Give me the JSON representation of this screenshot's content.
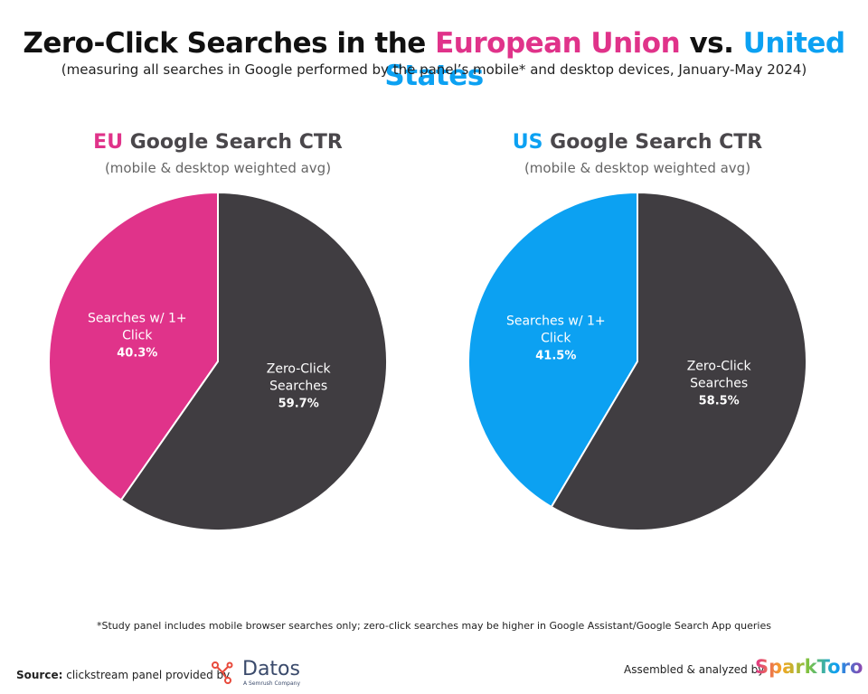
{
  "title": [
    "Zero-Click Searches in the",
    "European Union",
    "vs.",
    "United States"
  ],
  "subtitle": "(measuring all searches in Google performed by the panel’s mobile* and desktop devices, January-May 2024)",
  "chart_data": [
    {
      "type": "pie",
      "title_prefix": "EU",
      "title": "Google Search CTR",
      "subtitle": "(mobile & desktop weighted avg)",
      "categories": [
        "Searches w/ 1+ Click",
        "Zero-Click Searches"
      ],
      "values": [
        40.3,
        59.7
      ],
      "value_labels": [
        "40.3%",
        "59.7%"
      ],
      "colors": [
        "#e0338a",
        "#403d41"
      ]
    },
    {
      "type": "pie",
      "title_prefix": "US",
      "title": "Google Search CTR",
      "subtitle": "(mobile & desktop weighted avg)",
      "categories": [
        "Searches w/ 1+ Click",
        "Zero-Click Searches"
      ],
      "values": [
        41.5,
        58.5
      ],
      "value_labels": [
        "41.5%",
        "58.5%"
      ],
      "colors": [
        "#0ca1f2",
        "#403d41"
      ]
    }
  ],
  "footnote": "*Study panel includes mobile browser searches only; zero-click searches may be higher in Google Assistant/Google Search App queries",
  "source_label": "Source:",
  "source": "clickstream panel provided by",
  "datos": "Datos",
  "datos_sub": "A Semrush Company",
  "assembled": "Assembled & analyzed by",
  "sparktoro": "SparkToro"
}
